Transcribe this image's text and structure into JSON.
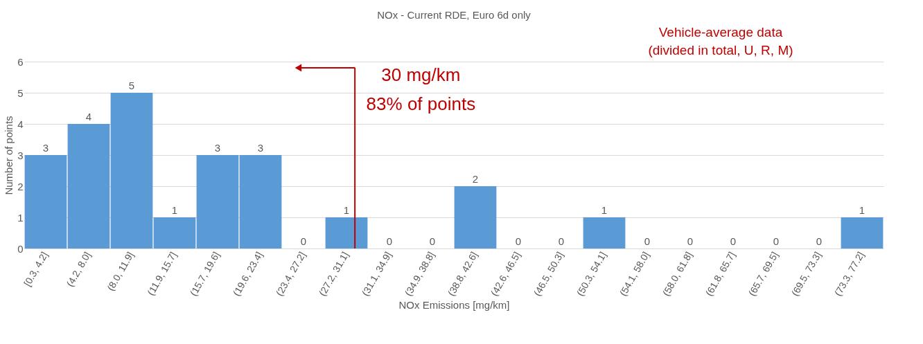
{
  "chart_data": {
    "type": "bar",
    "title": "NOx - Current RDE, Euro 6d only",
    "xlabel": "NOx Emissions [mg/km]",
    "ylabel": "Number of points",
    "categories": [
      "[0.3, 4.2]",
      "(4.2, 8.0]",
      "(8.0, 11.9]",
      "(11.9, 15.7]",
      "(15.7, 19.6]",
      "(19.6, 23.4]",
      "(23.4, 27.2]",
      "(27.2, 31.1]",
      "(31.1, 34.9]",
      "(34.9, 38.8]",
      "(38.8, 42.6]",
      "(42.6, 46.5]",
      "(46.5, 50.3]",
      "(50.3, 54.1]",
      "(54.1, 58.0]",
      "(58.0, 61.8]",
      "(61.8, 65.7]",
      "(65.7, 69.5]",
      "(69.5, 73.3]",
      "(73.3, 77.2]"
    ],
    "values": [
      3,
      4,
      5,
      1,
      3,
      3,
      0,
      1,
      0,
      0,
      2,
      0,
      0,
      1,
      0,
      0,
      0,
      0,
      0,
      1
    ],
    "ref_lines": [
      {
        "axis": "x",
        "value": "(27.2, 31.1]",
        "label": "30 mg/km",
        "color": "#c00000"
      }
    ],
    "color": "#5b9bd5",
    "ylim": [
      0,
      6
    ],
    "yticks": [
      0,
      1,
      2,
      3,
      4,
      5,
      6
    ],
    "grid": "y",
    "data_labels": true,
    "annotations": [
      "83% of points",
      "Vehicle-average data",
      "(divided in total, U, R, M)"
    ]
  }
}
